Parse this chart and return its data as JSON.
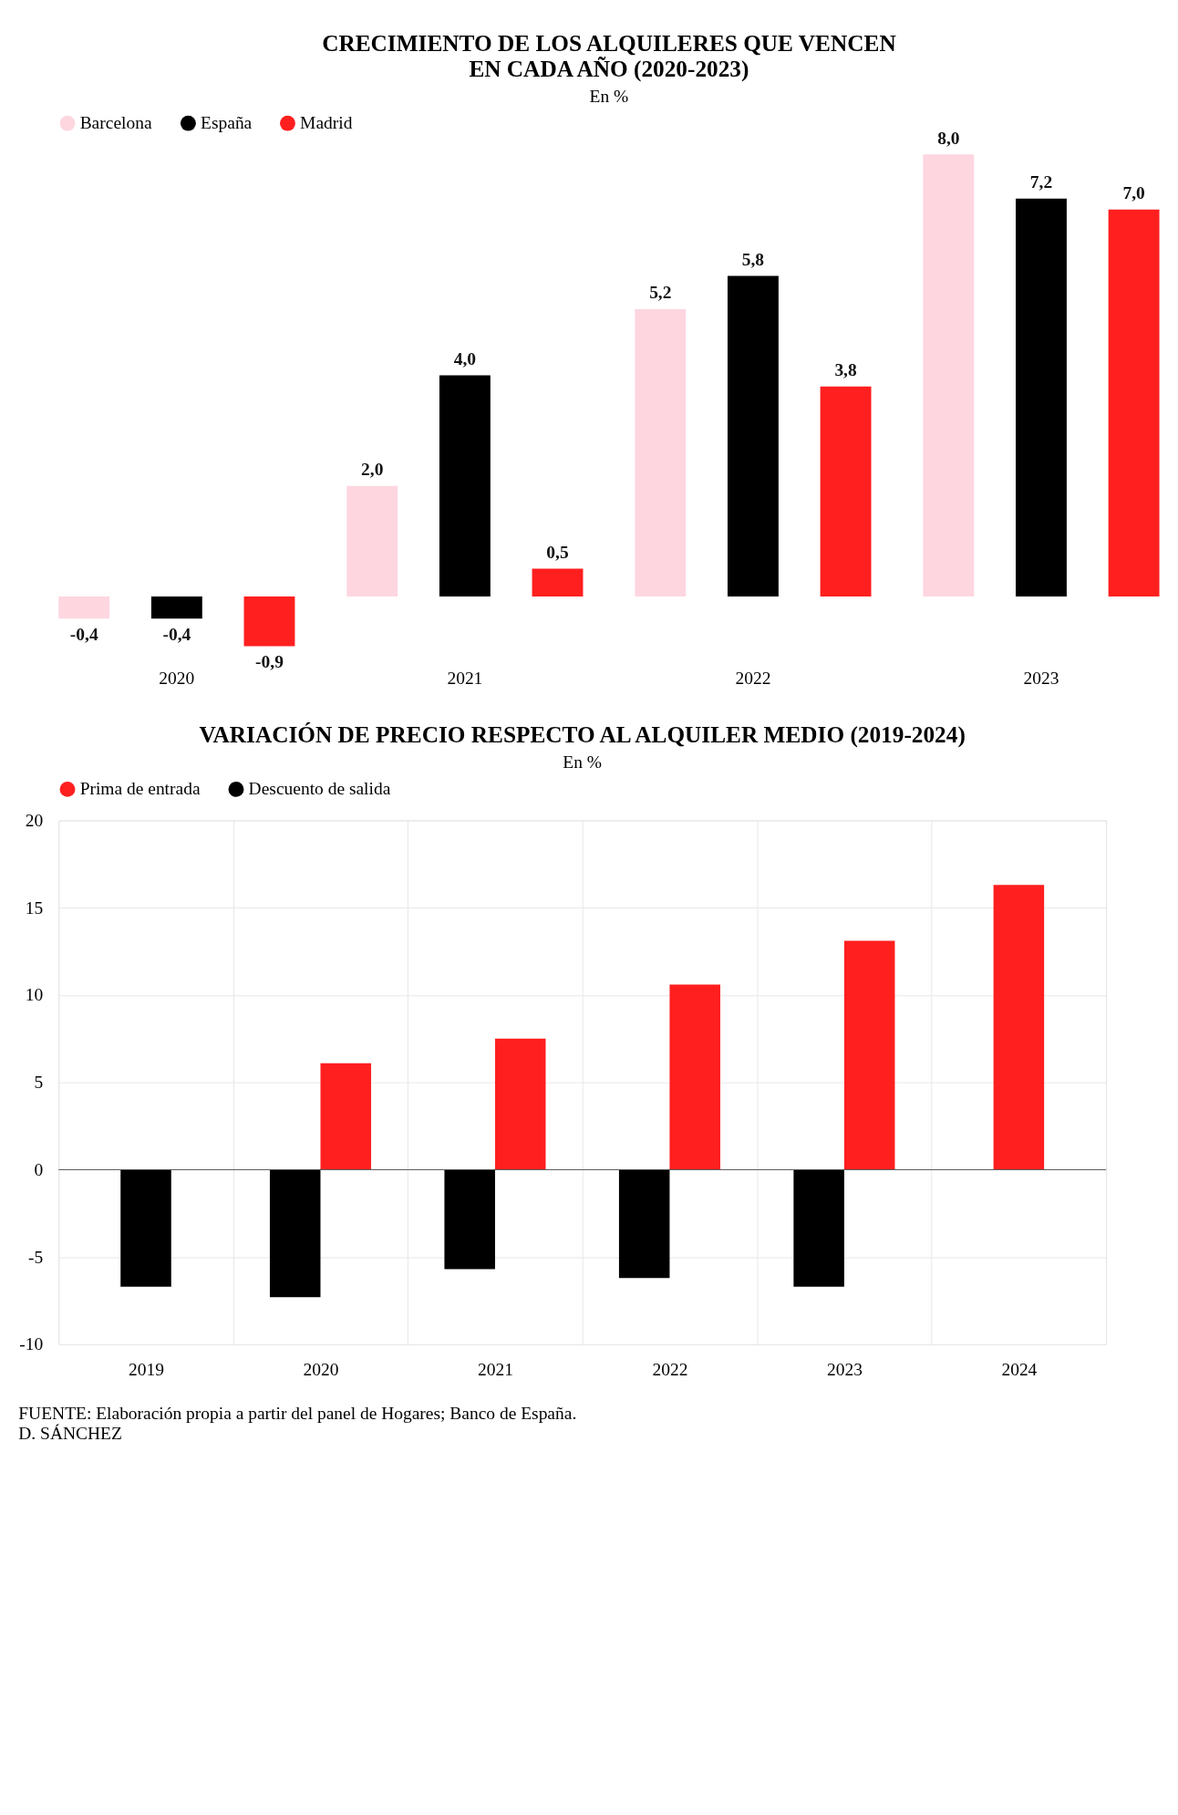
{
  "chart_data": [
    {
      "type": "bar",
      "title": "CRECIMIENTO DE LOS ALQUILERES QUE VENCEN\nEN CADA AÑO (2020-2023)",
      "subtitle": "En %",
      "categories": [
        "2020",
        "2021",
        "2022",
        "2023"
      ],
      "legend": "top",
      "tick_labels": "x",
      "series": [
        {
          "name": "Barcelona",
          "color": "#fdd6e0",
          "values": [
            -0.4,
            2.0,
            5.2,
            8.0
          ],
          "value_labels": [
            "-0,4",
            "2,0",
            "5,2",
            "8,0"
          ]
        },
        {
          "name": "España",
          "color": "#000000",
          "values": [
            -0.4,
            4.0,
            5.8,
            7.2
          ],
          "value_labels": [
            "-0,4",
            "4,0",
            "5,8",
            "7,2"
          ]
        },
        {
          "name": "Madrid",
          "color": "#ff1f1f",
          "values": [
            -0.9,
            0.5,
            3.8,
            7.0
          ],
          "value_labels": [
            "-0,9",
            "0,5",
            "3,8",
            "7,0"
          ]
        }
      ]
    },
    {
      "type": "bar",
      "title": "VARIACIÓN DE PRECIO RESPECTO AL ALQUILER MEDIO (2019-2024)",
      "subtitle": "En %",
      "categories": [
        "2019",
        "2020",
        "2021",
        "2022",
        "2023",
        "2024"
      ],
      "legend": "top",
      "grid": true,
      "ylim": [
        -10,
        20
      ],
      "yticks": [
        -10,
        -5,
        0,
        5,
        10,
        15,
        20
      ],
      "series": [
        {
          "name": "Prima de entrada",
          "color": "#ff1f1f",
          "values": [
            null,
            6.1,
            7.5,
            10.6,
            13.1,
            16.3
          ]
        },
        {
          "name": "Descuento de salida",
          "color": "#000000",
          "values": [
            -6.7,
            -7.3,
            -5.7,
            -6.2,
            -6.7,
            null
          ]
        }
      ],
      "annotations": [
        "FUENTE: Elaboración propia a partir del panel de Hogares; Banco de España.",
        "D. SÁNCHEZ"
      ]
    }
  ]
}
